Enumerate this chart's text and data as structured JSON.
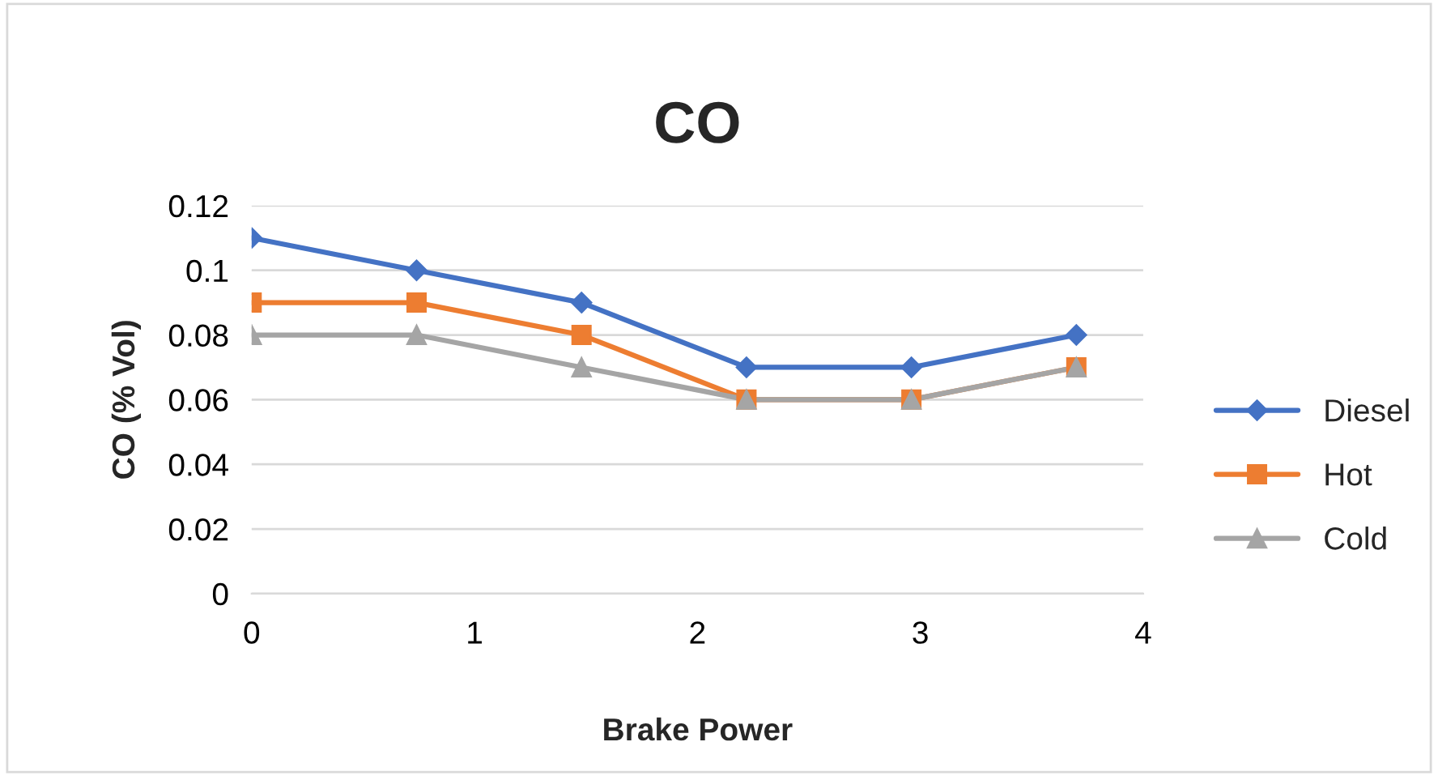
{
  "chart_data": {
    "type": "line",
    "title": "CO",
    "xlabel": "Brake Power",
    "ylabel": "CO (% Vol)",
    "x": [
      0,
      0.74,
      1.48,
      2.22,
      2.96,
      3.7
    ],
    "series": [
      {
        "name": "Diesel",
        "color": "#4472c4",
        "marker": "diamond",
        "values": [
          0.11,
          0.1,
          0.09,
          0.07,
          0.07,
          0.08
        ]
      },
      {
        "name": "Hot",
        "color": "#ed7d31",
        "marker": "square",
        "values": [
          0.09,
          0.09,
          0.08,
          0.06,
          0.06,
          0.07
        ]
      },
      {
        "name": "Cold",
        "color": "#a5a5a5",
        "marker": "triangle",
        "values": [
          0.08,
          0.08,
          0.07,
          0.06,
          0.06,
          0.07
        ]
      }
    ],
    "xlim": [
      0,
      4
    ],
    "xticks": [
      0,
      1,
      2,
      3,
      4
    ],
    "ylim": [
      0,
      0.12
    ],
    "yticks": [
      0,
      0.02,
      0.04,
      0.06,
      0.08,
      0.1,
      0.12
    ],
    "grid": "y",
    "legend": "right",
    "line_style": "solid"
  }
}
